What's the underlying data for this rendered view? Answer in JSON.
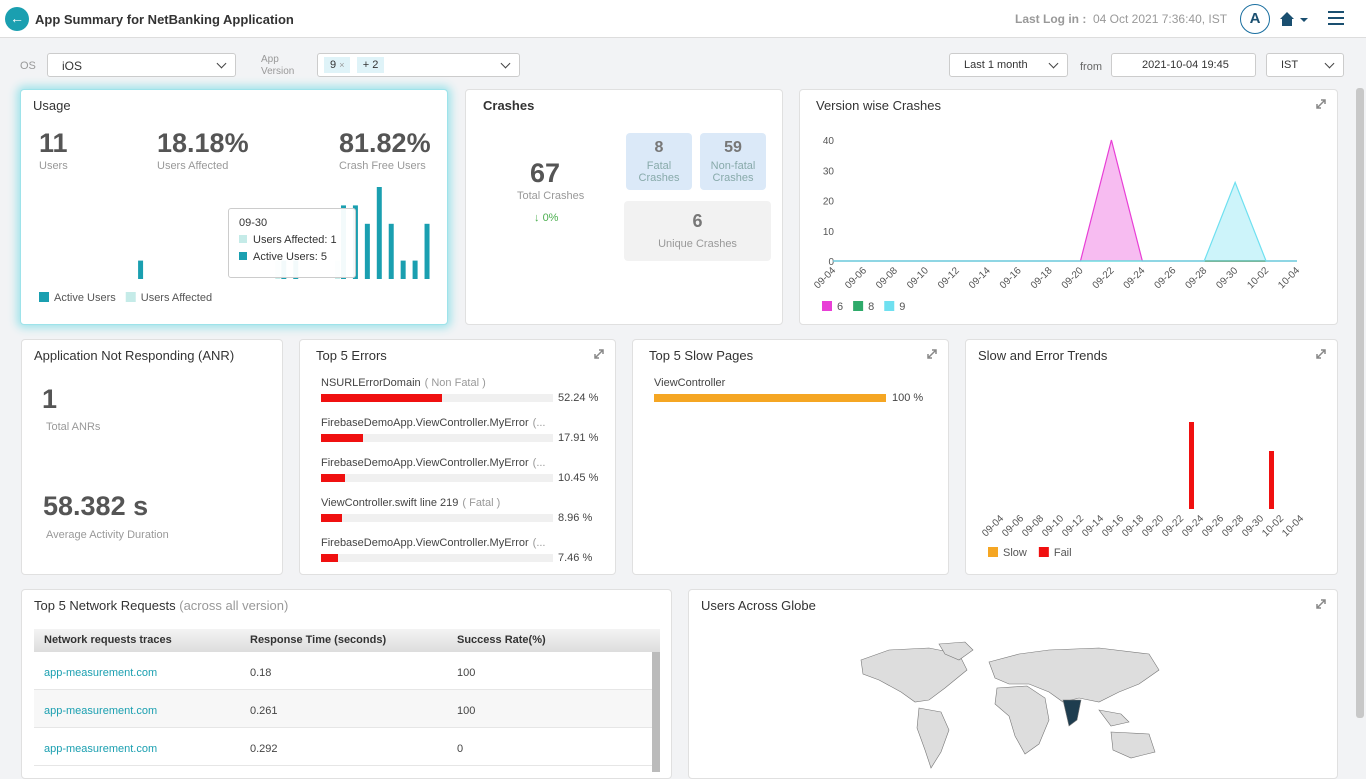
{
  "header": {
    "title": "App Summary for NetBanking Application",
    "last_login_label": "Last Log in :",
    "last_login": "04 Oct 2021 7:36:40, IST",
    "avatar": "A"
  },
  "filters": {
    "os_label": "OS",
    "os": "iOS",
    "version_label": "App Version",
    "version_chip": "9",
    "version_more": "+ 2",
    "range": "Last 1 month",
    "from_label": "from",
    "from": "2021-10-04 19:45",
    "timezone": "IST"
  },
  "usage": {
    "title": "Usage",
    "stats": [
      {
        "value": "11",
        "label": "Users"
      },
      {
        "value": "18.18%",
        "label": "Users Affected"
      },
      {
        "value": "81.82%",
        "label": "Crash Free Users"
      }
    ],
    "tooltip": {
      "date": "09-30",
      "affected": "Users Affected: 1",
      "active": "Active Users: 5"
    },
    "chart_data": {
      "type": "bar",
      "series": [
        {
          "name": "Active Users",
          "color": "#1a9fb0",
          "values": [
            0,
            0,
            0,
            0,
            0,
            0,
            1,
            0,
            0,
            0,
            0,
            0,
            0,
            0,
            0,
            0,
            0,
            0,
            1,
            1,
            0,
            0,
            0,
            4,
            4,
            3,
            5,
            3,
            1,
            1,
            3
          ]
        },
        {
          "name": "Users Affected",
          "color": "#c5ebe8",
          "values": [
            0,
            0,
            0,
            0,
            0,
            0,
            0,
            0,
            0,
            0,
            0,
            0,
            0,
            0,
            0,
            0,
            0,
            0,
            1,
            0,
            0,
            0,
            0,
            1,
            0,
            0,
            0,
            0,
            0,
            0,
            0
          ]
        }
      ]
    }
  },
  "crashes": {
    "title": "Crashes",
    "total": "67",
    "total_label": "Total Crashes",
    "change": "0%",
    "fatal": "8",
    "fatal_label": "Fatal Crashes",
    "nonfatal": "59",
    "nonfatal_label": "Non-fatal Crashes",
    "unique": "6",
    "unique_label": "Unique Crashes"
  },
  "version_crashes": {
    "title": "Version wise Crashes",
    "chart_data": {
      "type": "area",
      "categories": [
        "09-04",
        "09-06",
        "09-08",
        "09-10",
        "09-12",
        "09-14",
        "09-16",
        "09-18",
        "09-20",
        "09-22",
        "09-24",
        "09-26",
        "09-28",
        "09-30",
        "10-02",
        "10-04"
      ],
      "ylim": [
        0,
        40
      ],
      "yticks": [
        0,
        10,
        20,
        30,
        40
      ],
      "series": [
        {
          "name": "6",
          "color": "#e83ed6",
          "values": [
            0,
            0,
            0,
            0,
            0,
            0,
            0,
            0,
            0,
            40,
            0,
            0,
            0,
            0,
            0,
            0
          ]
        },
        {
          "name": "8",
          "color": "#2eaa6a",
          "values": [
            0,
            0,
            0,
            0,
            0,
            0,
            0,
            0,
            0,
            0,
            0,
            0,
            0,
            0,
            0,
            0
          ]
        },
        {
          "name": "9",
          "color": "#6fe0f0",
          "values": [
            0,
            0,
            0,
            0,
            0,
            0,
            0,
            0,
            0,
            0,
            0,
            0,
            0,
            26,
            0,
            0
          ]
        }
      ]
    }
  },
  "anr": {
    "title": "Application Not Responding (ANR)",
    "total": "1",
    "total_label": "Total ANRs",
    "duration": "58.382 s",
    "duration_label": "Average Activity Duration"
  },
  "errors": {
    "title": "Top 5 Errors",
    "chart_data": {
      "type": "hbar",
      "xlim": [
        0,
        100
      ],
      "color": "#f01010",
      "categories": [
        "NSURLErrorDomain",
        "FirebaseDemoApp.ViewController.MyError",
        "FirebaseDemoApp.ViewController.MyError",
        "ViewController.swift line 219",
        "FirebaseDemoApp.ViewController.MyError"
      ],
      "tags": [
        "( Non Fatal )",
        "(...",
        "(...",
        "( Fatal )",
        "(..."
      ],
      "values": [
        52.24,
        17.91,
        10.45,
        8.96,
        7.46
      ],
      "value_labels": [
        "52.24 %",
        "17.91 %",
        "10.45 %",
        "8.96 %",
        "7.46 %"
      ]
    }
  },
  "slow_pages": {
    "title": "Top 5 Slow Pages",
    "chart_data": {
      "type": "hbar",
      "xlim": [
        0,
        100
      ],
      "color": "#f5a623",
      "categories": [
        "ViewController"
      ],
      "values": [
        100
      ],
      "value_labels": [
        "100 %"
      ]
    }
  },
  "trends": {
    "title": "Slow and Error Trends",
    "chart_data": {
      "type": "bar",
      "categories": [
        "09-04",
        "09-06",
        "09-08",
        "09-10",
        "09-12",
        "09-14",
        "09-16",
        "09-18",
        "09-20",
        "09-22",
        "09-24",
        "09-26",
        "09-28",
        "09-30",
        "10-02",
        "10-04"
      ],
      "series": [
        {
          "name": "Slow",
          "color": "#f5a623",
          "values": [
            0,
            0,
            0,
            0,
            0,
            0,
            0,
            0,
            0,
            0,
            0,
            0,
            0,
            0,
            0,
            0
          ]
        },
        {
          "name": "Fail",
          "color": "#f01010",
          "values": [
            0,
            0,
            0,
            0,
            0,
            0,
            0,
            0,
            0,
            3,
            0,
            0,
            0,
            2,
            0,
            0
          ]
        }
      ]
    }
  },
  "network": {
    "title": "Top 5 Network Requests",
    "subtitle": "(across all version)",
    "table": {
      "headers": [
        "Network requests traces",
        "Response Time (seconds)",
        "Success Rate(%)"
      ],
      "rows": [
        [
          "app-measurement.com",
          "0.18",
          "100"
        ],
        [
          "app-measurement.com",
          "0.261",
          "100"
        ],
        [
          "app-measurement.com",
          "0.292",
          "0"
        ]
      ]
    }
  },
  "globe": {
    "title": "Users Across Globe"
  }
}
